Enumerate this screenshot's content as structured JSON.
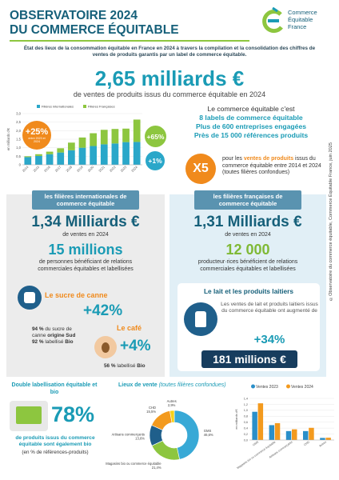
{
  "header": {
    "title_line1": "OBSERVATOIRE 2024",
    "title_line2": "DU COMMERCE ÉQUITABLE",
    "logo": [
      "Commerce",
      "Équitable",
      "France"
    ]
  },
  "intro": "État des lieux de la consommation équitable en France en 2024 à travers la compilation et la consolidation des chiffres de ventes de produits garantis par un label de commerce équitable.",
  "headline": {
    "value": "2,65 milliards €",
    "caption": "de ventes de produits issus du commerce équitable en 2024"
  },
  "facts": {
    "intro": "Le commerce équitable c'est",
    "items": [
      "8 labels de commerce équitable",
      "Plus de 600 entreprises engagées",
      "Près de 15 000 références produits"
    ]
  },
  "growth": {
    "badge": "X5",
    "text": [
      "pour les ",
      "ventes de produits",
      " issus du commerce équitable entre 2014 et 2024 (toutes filières confondues)"
    ]
  },
  "international": {
    "header": "les filières internationales de commerce équitable",
    "sales": "1,34 Milliards €",
    "sales_caption": "de ventes en 2024",
    "people": "15 millions",
    "people_caption": "de personnes bénéficiant de relations commerciales équitables et labellisées",
    "sugar": {
      "title": "Le sucre de canne",
      "change": "+42%",
      "line1": [
        "94 %",
        " du sucre de canne ",
        "origine Sud"
      ],
      "line2": [
        "92 %",
        " labellisé ",
        "Bio"
      ]
    },
    "coffee": {
      "title": "Le café",
      "change": "+4%",
      "line": [
        "56 %",
        " labellisé ",
        "Bio"
      ]
    }
  },
  "french": {
    "header": "les filières françaises de commerce équitable",
    "sales": "1,31 Milliards €",
    "sales_caption": "de ventes en 2024",
    "producers": "12 000",
    "producers_caption": "producteur·rices bénéficient de relations commerciales équitables et labellisées",
    "milk": {
      "title": "Le lait et les produits laitiers",
      "text": "Les ventes de lait et produits laitiers issus du commerce équitable ont augmenté de",
      "change": "+34%",
      "amount": "181 millions €"
    }
  },
  "bio": {
    "title": "Double labellisation équitable et bio",
    "value": "78%",
    "caption": "de produits issus du commerce équitable sont également bio",
    "note": "(en % de références-produits)"
  },
  "credit": "©Observatoire du commerce équitable, Commerce Équitable France, juin 2025",
  "chart_data": [
    {
      "type": "bar",
      "stacked": true,
      "y_label": "en milliards d'€",
      "categories": [
        "2014",
        "2015",
        "2016",
        "2017",
        "2018",
        "2019",
        "2020",
        "2021",
        "2022",
        "2023",
        "2024"
      ],
      "series": [
        {
          "name": "Filières internationales",
          "color": "#2aa7c9",
          "values": [
            0.45,
            0.52,
            0.62,
            0.72,
            0.85,
            1.0,
            1.1,
            1.2,
            1.25,
            1.33,
            1.34
          ]
        },
        {
          "name": "Filières Françaises",
          "color": "#8dc63f",
          "values": [
            0.05,
            0.1,
            0.15,
            0.25,
            0.45,
            0.6,
            0.75,
            0.85,
            0.85,
            0.79,
            1.31
          ]
        }
      ],
      "ylim": [
        0,
        3
      ],
      "yticks": [
        0,
        {
          "value": 0.5,
          "label": "0,5"
        },
        {
          "value": 1,
          "label": "1,0"
        },
        {
          "value": 1.5,
          "label": "1,5"
        },
        {
          "value": 2,
          "label": "2,0"
        },
        {
          "value": 2.5,
          "label": "2,5"
        },
        {
          "value": 3,
          "label": "3,0"
        }
      ],
      "annotations": [
        {
          "label": "+25%",
          "note": "entre 2023 et 2024"
        },
        {
          "label": "+65%"
        },
        {
          "label": "+1%"
        }
      ]
    },
    {
      "type": "pie",
      "donut": true,
      "title": "Lieux de vente",
      "subtitle": "(toutes filières confondues)",
      "categories": [
        "GMS",
        "Magasins bio ou commerce équitable",
        "Artisans commerçants",
        "CHD",
        "Autres"
      ],
      "values": [
        46.6,
        21.4,
        13.6,
        15.5,
        2.9
      ],
      "value_labels": [
        "46,6%",
        "21,4%",
        "13,6%",
        "15,5%",
        "2,9%"
      ],
      "colors": [
        "#38a9d6",
        "#8dc63f",
        "#1f5f8b",
        "#f39a1e",
        "#f7d117"
      ]
    },
    {
      "type": "bar",
      "stacked": false,
      "y_label": "en milliards d'€",
      "categories": [
        "GMS",
        "Magasins bio ou commerce équitable",
        "Artisans commerçants",
        "CHD",
        "Autres"
      ],
      "series": [
        {
          "name": "Ventes 2023",
          "color": "#2a8fc9",
          "values": [
            0.95,
            0.5,
            0.3,
            0.3,
            0.07
          ]
        },
        {
          "name": "Ventes 2024",
          "color": "#f39a1e",
          "values": [
            1.235,
            0.567,
            0.36,
            0.41,
            0.077
          ]
        }
      ],
      "ylim": [
        0,
        1.4
      ],
      "yticks": [
        {
          "value": 0,
          "label": "0,0"
        },
        {
          "value": 0.2,
          "label": "0,2"
        },
        {
          "value": 0.4,
          "label": "0,4"
        },
        {
          "value": 0.6,
          "label": "0,6"
        },
        {
          "value": 0.8,
          "label": "0,8"
        },
        {
          "value": 1,
          "label": "1,0"
        },
        {
          "value": 1.2,
          "label": "1,2"
        },
        {
          "value": 1.4,
          "label": "1,4"
        }
      ]
    }
  ]
}
